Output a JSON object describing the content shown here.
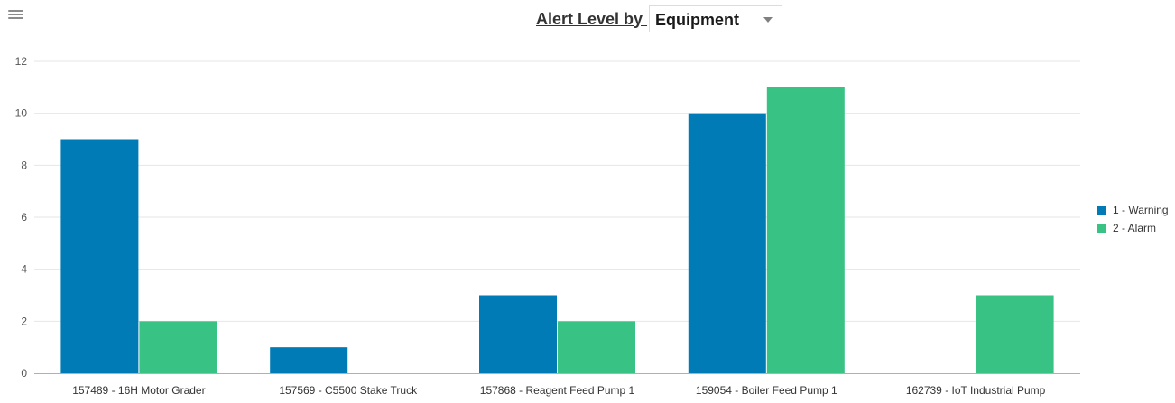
{
  "header": {
    "title": "Alert Level by ",
    "selected": "Equipment"
  },
  "chart_data": {
    "type": "bar",
    "categories": [
      "157489 - 16H Motor Grader",
      "157569 - C5500 Stake Truck",
      "157868 - Reagent Feed Pump 1",
      "159054 - Boiler Feed Pump 1",
      "162739 - IoT Industrial Pump"
    ],
    "series": [
      {
        "name": "1 - Warning",
        "color": "#007bb5",
        "values": [
          9,
          1,
          3,
          10,
          0
        ]
      },
      {
        "name": "2 - Alarm",
        "color": "#38c283",
        "values": [
          2,
          0,
          2,
          11,
          3
        ]
      }
    ],
    "ylim": [
      0,
      12
    ],
    "yticks": [
      0,
      2,
      4,
      6,
      8,
      10,
      12
    ],
    "grid": true,
    "legend": "right"
  }
}
